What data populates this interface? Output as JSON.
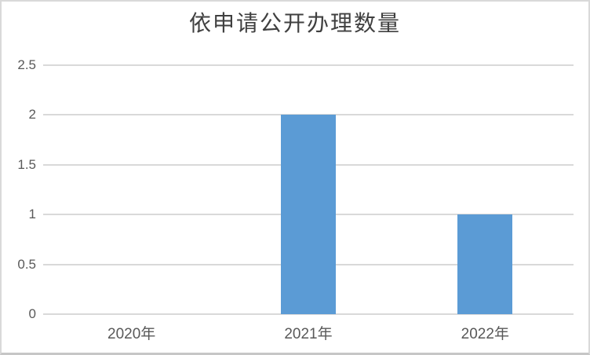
{
  "chart_data": {
    "type": "bar",
    "title": "依申请公开办理数量",
    "categories": [
      "2020年",
      "2021年",
      "2022年"
    ],
    "values": [
      0,
      2,
      1
    ],
    "series_name": "依申请公开办理数量",
    "xlabel": "",
    "ylabel": "",
    "ylim": [
      0,
      2.5
    ],
    "yticks": [
      0,
      0.5,
      1,
      1.5,
      2,
      2.5
    ],
    "ytick_labels": [
      "0",
      "0.5",
      "1",
      "1.5",
      "2",
      "2.5"
    ],
    "grid": "horizontal",
    "legend": "none",
    "bar_color": "#5B9BD5",
    "gridline_color": "#D9D9D9",
    "tick_label_color": "#595959",
    "title_color": "#404040",
    "background_color": "#FFFFFF",
    "border_color": "#D9D9D9"
  }
}
